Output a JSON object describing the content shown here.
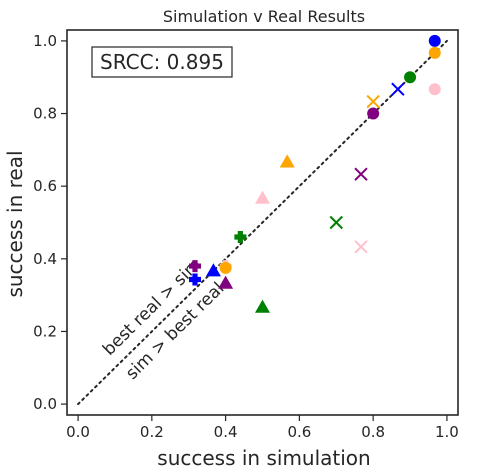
{
  "chart_data": {
    "type": "scatter",
    "title": "Simulation v Real Results",
    "xlabel": "success in simulation",
    "ylabel": "success in real",
    "xlim": [
      -0.03,
      1.03
    ],
    "ylim": [
      -0.03,
      1.03
    ],
    "xticks": [
      "0.0",
      "0.2",
      "0.4",
      "0.6",
      "0.8",
      "1.0"
    ],
    "yticks": [
      "0.0",
      "0.2",
      "0.4",
      "0.6",
      "0.8",
      "1.0"
    ],
    "srcc_text": "SRCC: 0.895",
    "annotations": {
      "upper": "best real > sim",
      "lower": "sim > best real"
    },
    "reference_line": {
      "from": [
        0,
        0
      ],
      "to": [
        1,
        1
      ],
      "style": "dotted"
    },
    "points": [
      {
        "x": 0.967,
        "y": 1.0,
        "marker": "circle",
        "color": "#0000ff"
      },
      {
        "x": 0.967,
        "y": 0.967,
        "marker": "circle",
        "color": "#ffa500"
      },
      {
        "x": 0.9,
        "y": 0.9,
        "marker": "circle",
        "color": "#008000"
      },
      {
        "x": 0.8,
        "y": 0.8,
        "marker": "circle",
        "color": "#800080"
      },
      {
        "x": 0.967,
        "y": 0.867,
        "marker": "circle",
        "color": "#ffc0cb"
      },
      {
        "x": 0.867,
        "y": 0.867,
        "marker": "x",
        "color": "#0000ff"
      },
      {
        "x": 0.8,
        "y": 0.833,
        "marker": "x",
        "color": "#ffa500"
      },
      {
        "x": 0.767,
        "y": 0.633,
        "marker": "x",
        "color": "#800080"
      },
      {
        "x": 0.7,
        "y": 0.5,
        "marker": "x",
        "color": "#008000"
      },
      {
        "x": 0.767,
        "y": 0.433,
        "marker": "x",
        "color": "#ffc0cb"
      },
      {
        "x": 0.567,
        "y": 0.667,
        "marker": "triangle",
        "color": "#ffa500"
      },
      {
        "x": 0.5,
        "y": 0.567,
        "marker": "triangle",
        "color": "#ffc0cb"
      },
      {
        "x": 0.367,
        "y": 0.367,
        "marker": "triangle",
        "color": "#0000ff"
      },
      {
        "x": 0.4,
        "y": 0.333,
        "marker": "triangle",
        "color": "#800080"
      },
      {
        "x": 0.5,
        "y": 0.267,
        "marker": "triangle",
        "color": "#008000"
      },
      {
        "x": 0.44,
        "y": 0.46,
        "marker": "plus",
        "color": "#008000"
      },
      {
        "x": 0.317,
        "y": 0.38,
        "marker": "plus",
        "color": "#800080"
      },
      {
        "x": 0.317,
        "y": 0.343,
        "marker": "plus",
        "color": "#0000ff"
      },
      {
        "x": 0.4,
        "y": 0.38,
        "marker": "plus",
        "color": "#ffc0cb"
      },
      {
        "x": 0.4,
        "y": 0.375,
        "marker": "circle",
        "color": "#ffa500"
      }
    ]
  }
}
